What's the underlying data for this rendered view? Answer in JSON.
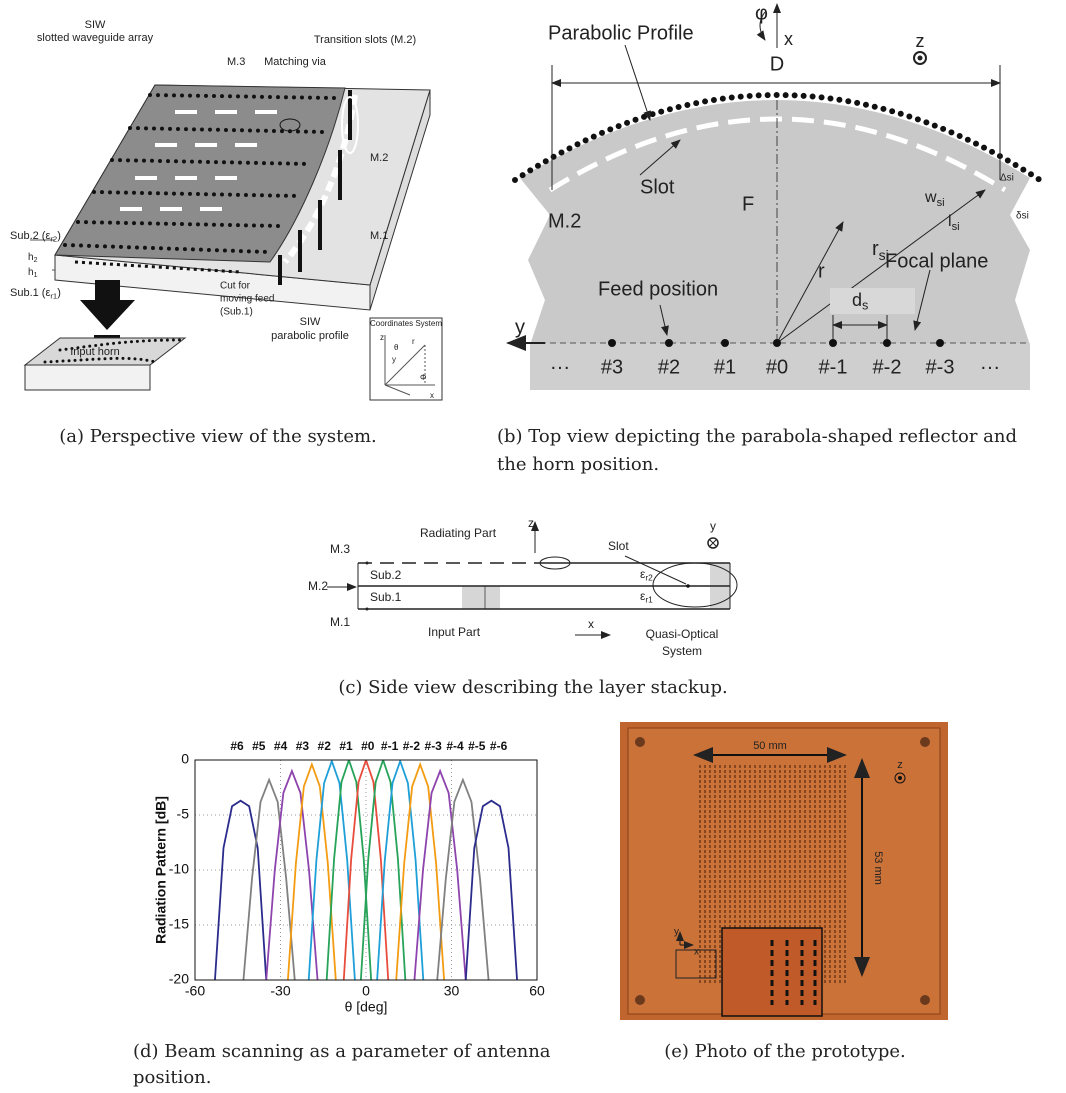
{
  "figure": {
    "a": {
      "caption": "(a) Perspective view of the system.",
      "labels": {
        "siw": "SIW",
        "array": "slotted waveguide array",
        "m3": "M.3",
        "via": "Matching via",
        "transition": "Transition slots (M.2)",
        "sub2": {
          "base": "Sub.2 (ε",
          "sub": "r2",
          "tail": ")"
        },
        "h2": {
          "base": "h",
          "sub": "2"
        },
        "h1": {
          "base": "h",
          "sub": "1"
        },
        "sub1": {
          "base": "Sub.1 (ε",
          "sub": "r1",
          "tail": ")"
        },
        "cut1": "Cut for",
        "cut2": "moving feed",
        "cut3": "(Sub.1)",
        "m2": "M.2",
        "m1": "M.1",
        "siw2": "SIW",
        "parabolic": "parabolic profile",
        "horn": "Input horn",
        "coords": "Coordinates System",
        "cz": "z",
        "ctheta": "θ",
        "cy": "y",
        "cr": "r",
        "cphi": "Φ",
        "cx": "x"
      }
    },
    "b": {
      "caption": [
        "(b) Top view depicting the parabola-shaped reflector and",
        "the horn position."
      ],
      "labels": {
        "profile": "Parabolic Profile",
        "phi": "φ",
        "x": "x",
        "z": "z",
        "d": "D",
        "slot": "Slot",
        "m2": "M.2",
        "f": "F",
        "r": "r",
        "rsi": {
          "base": "r",
          "sub": "si"
        },
        "wsi": {
          "base": "w",
          "sub": "si"
        },
        "lsi": {
          "base": "l",
          "sub": "si"
        },
        "dsi_big": "Δsi",
        "dsi_small": "δsi",
        "focal": "Focal plane",
        "feed": "Feed position",
        "ds": {
          "base": "d",
          "sub": "s"
        },
        "y": "y",
        "ellipsis_left": "···",
        "ellipsis_right": "···"
      },
      "feeds": [
        "#3",
        "#2",
        "#1",
        "#0",
        "#-1",
        "#-2",
        "#-3"
      ]
    },
    "c": {
      "caption": "(c) Side view describing the layer stackup.",
      "labels": {
        "m3": "M.3",
        "m2": "M.2",
        "m1": "M.1",
        "radiating": "Radiating Part",
        "z": "z",
        "y": "y",
        "slot": "Slot",
        "sub2": "Sub.2",
        "sub1": "Sub.1",
        "er2": {
          "base": "ε",
          "sub": "r2"
        },
        "er1": {
          "base": "ε",
          "sub": "r1"
        },
        "input": "Input Part",
        "x": "x",
        "quasi1": "Quasi-Optical",
        "quasi2": "System"
      }
    },
    "d": {
      "caption": [
        "(d) Beam scanning as a parameter of antenna",
        "position."
      ]
    },
    "e": {
      "caption": "(e) Photo of the prototype.",
      "labels": {
        "w": "50 mm",
        "h": "53 mm",
        "z": "z",
        "y": "y",
        "x": "x"
      }
    }
  },
  "chart_data": {
    "type": "line",
    "xlabel": "θ [deg]",
    "ylabel": "Radiation Pattern [dB]",
    "xlim": [
      -60,
      60
    ],
    "xticks": [
      -60,
      -30,
      0,
      30,
      60
    ],
    "ylim": [
      -20,
      0
    ],
    "yticks": [
      -20,
      -15,
      -10,
      -5,
      0
    ],
    "grid": true,
    "series": [
      {
        "name": "#6",
        "color": "#2b2b8c",
        "x": [
          -53,
          -50,
          -47,
          -44,
          -41,
          -38,
          -35
        ],
        "values": [
          -20,
          -8,
          -4.2,
          -3.7,
          -4.2,
          -8,
          -20
        ]
      },
      {
        "name": "#5",
        "color": "#808080",
        "x": [
          -43,
          -40,
          -37,
          -34,
          -31,
          -28,
          -25
        ],
        "values": [
          -20,
          -10.8,
          -3.8,
          -1.8,
          -3.8,
          -10.8,
          -20
        ]
      },
      {
        "name": "#4",
        "color": "#8e44ad",
        "x": [
          -35,
          -32,
          -29,
          -26,
          -23,
          -20,
          -17
        ],
        "values": [
          -20,
          -10,
          -3,
          -1,
          -3,
          -10,
          -20
        ]
      },
      {
        "name": "#3",
        "color": "#f39c12",
        "x": [
          -27.4,
          -24.6,
          -21.8,
          -19,
          -16.2,
          -13.4,
          -10.6
        ],
        "values": [
          -20,
          -9.4,
          -2.4,
          -0.4,
          -2.4,
          -9.4,
          -20
        ]
      },
      {
        "name": "#2",
        "color": "#1f9fd8",
        "x": [
          -20.1,
          -17.4,
          -14.7,
          -12,
          -9.3,
          -6.6,
          -3.9
        ],
        "values": [
          -20,
          -9.1,
          -2.1,
          -0.1,
          -2.1,
          -9.1,
          -20
        ]
      },
      {
        "name": "#1",
        "color": "#27a35a",
        "x": [
          -13.8,
          -11.2,
          -8.6,
          -6,
          -3.4,
          -0.8,
          1.8
        ],
        "values": [
          -20,
          -9,
          -2,
          0,
          -2,
          -9,
          -20
        ]
      },
      {
        "name": "#0",
        "color": "#e74c3c",
        "x": [
          -7.8,
          -5.2,
          -2.6,
          0,
          2.6,
          5.2,
          7.8
        ],
        "values": [
          -20,
          -9,
          -2,
          0,
          -2,
          -9,
          -20
        ]
      },
      {
        "name": "#-1",
        "color": "#27a35a",
        "x": [
          -1.8,
          0.8,
          3.4,
          6,
          8.6,
          11.2,
          13.8
        ],
        "values": [
          -20,
          -9,
          -2,
          0,
          -2,
          -9,
          -20
        ]
      },
      {
        "name": "#-2",
        "color": "#1f9fd8",
        "x": [
          3.9,
          6.6,
          9.3,
          12,
          14.7,
          17.4,
          20.1
        ],
        "values": [
          -20,
          -9.1,
          -2.1,
          -0.1,
          -2.1,
          -9.1,
          -20
        ]
      },
      {
        "name": "#-3",
        "color": "#f39c12",
        "x": [
          10.6,
          13.4,
          16.2,
          19,
          21.8,
          24.6,
          27.4
        ],
        "values": [
          -20,
          -9.4,
          -2.4,
          -0.4,
          -2.4,
          -9.4,
          -20
        ]
      },
      {
        "name": "#-4",
        "color": "#8e44ad",
        "x": [
          17,
          20,
          23,
          26,
          29,
          32,
          35
        ],
        "values": [
          -20,
          -10,
          -3,
          -1,
          -3,
          -10,
          -20
        ]
      },
      {
        "name": "#-5",
        "color": "#808080",
        "x": [
          25,
          28,
          31,
          34,
          37,
          40,
          43
        ],
        "values": [
          -20,
          -10.8,
          -3.8,
          -1.8,
          -3.8,
          -10.8,
          -20
        ]
      },
      {
        "name": "#-6",
        "color": "#2b2b8c",
        "x": [
          35,
          38,
          41,
          44,
          47,
          50,
          53
        ],
        "values": [
          -20,
          -8,
          -4.2,
          -3.7,
          -4.2,
          -8,
          -20
        ]
      }
    ]
  }
}
